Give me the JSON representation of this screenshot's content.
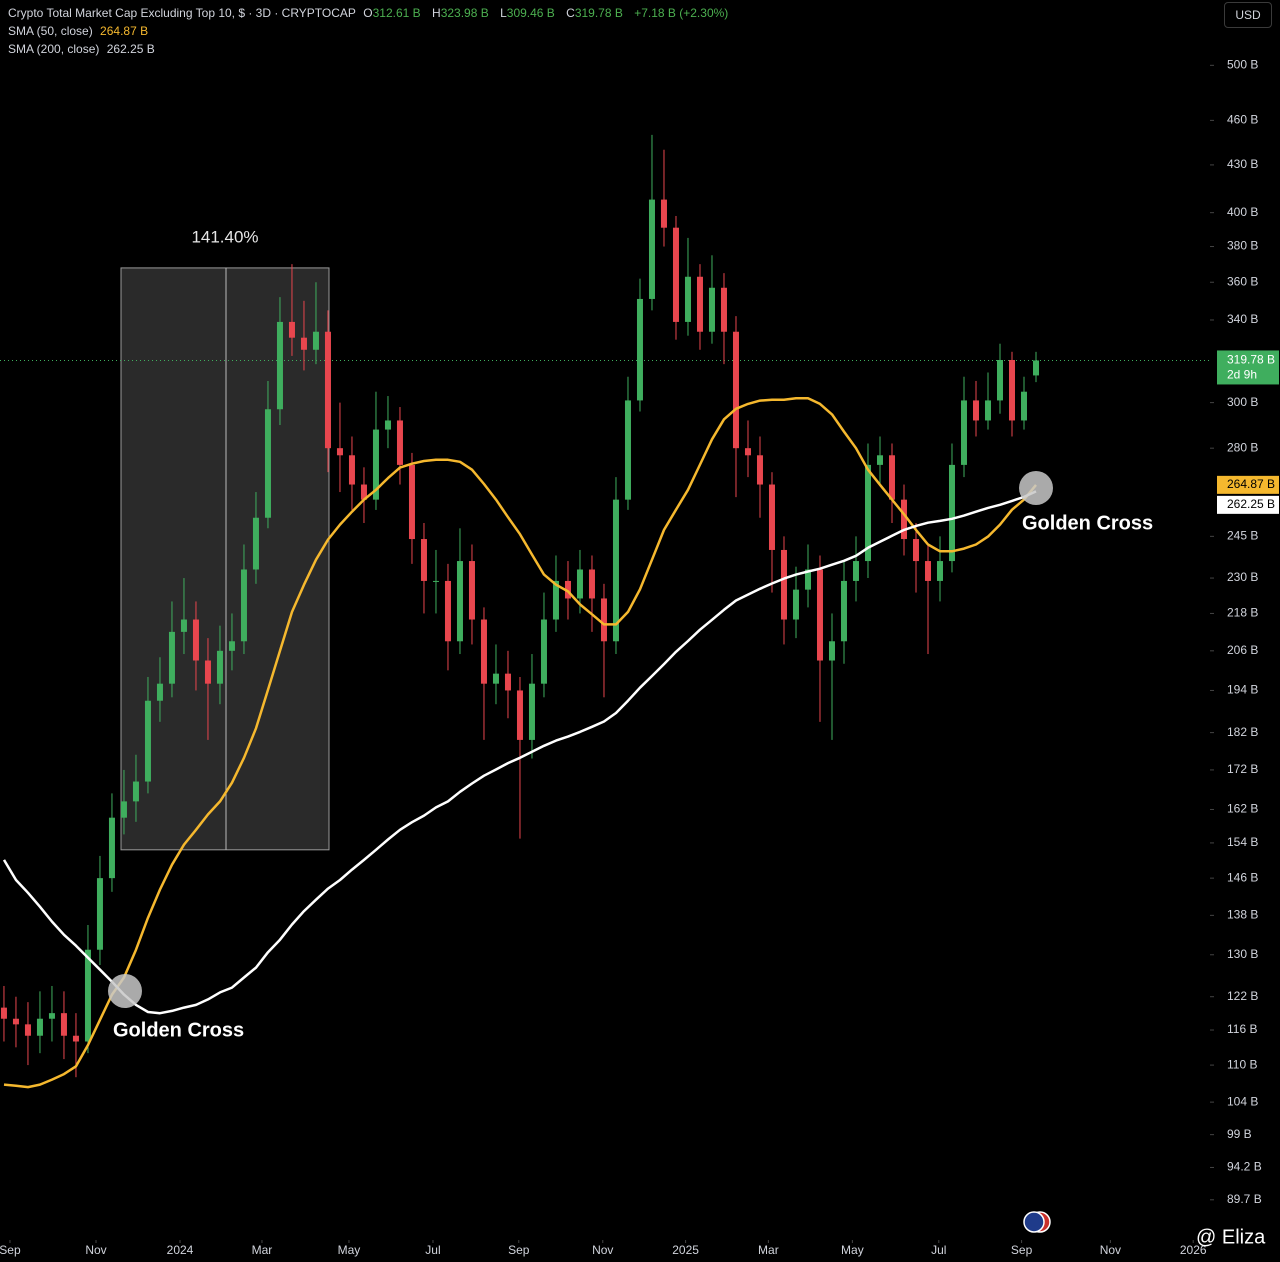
{
  "header": {
    "title": "Crypto Total Market Cap Excluding Top 10, $ · 3D · CRYPTOCAP",
    "ohlc_keys": [
      "O",
      "H",
      "L",
      "C"
    ],
    "ohlc_labels": [
      "312.61 B",
      "323.98 B",
      "309.46 B",
      "319.78 B"
    ],
    "change_label": "+7.18 B (+2.30%)",
    "currency": "USD"
  },
  "chart_data": {
    "type": "candlestick",
    "log_scale": true,
    "categories": [
      null,
      null,
      null,
      null,
      null,
      null,
      null,
      null,
      null,
      null,
      null,
      null,
      null,
      null,
      null,
      null,
      null,
      null,
      null,
      null,
      null,
      null,
      null,
      null,
      null,
      null,
      null,
      null,
      null,
      null,
      null,
      null,
      null,
      null,
      null,
      null,
      null,
      null,
      null,
      null,
      null,
      null,
      null,
      null,
      null,
      null,
      null,
      null,
      null,
      null,
      null,
      null,
      null,
      null,
      null,
      null,
      null,
      null,
      null,
      null,
      null,
      null,
      null,
      null,
      null,
      null,
      null,
      null,
      null,
      null,
      null,
      null,
      null,
      null,
      null,
      null,
      null,
      null,
      null,
      null,
      null,
      null,
      null,
      null,
      null,
      null,
      null
    ],
    "open": [
      120,
      118,
      117,
      115,
      118,
      119,
      115,
      114,
      131,
      146,
      160,
      164,
      169,
      191,
      196,
      212,
      216,
      203,
      196,
      206,
      209,
      233,
      252,
      297,
      339,
      331,
      325,
      334,
      280,
      277,
      265,
      259,
      288,
      292,
      273,
      244,
      229,
      229,
      209,
      236,
      216,
      196,
      199,
      194,
      180,
      196,
      216,
      229,
      223,
      233,
      223,
      209,
      259,
      301,
      351,
      408,
      391,
      339,
      363,
      334,
      357,
      334,
      280,
      277,
      265,
      240,
      216,
      226,
      233,
      203,
      209,
      229,
      236,
      273,
      277,
      259,
      244,
      236,
      229,
      236,
      273,
      301,
      292,
      301,
      320,
      292,
      312.61
    ],
    "high": [
      124,
      122,
      121,
      123,
      124,
      123,
      119,
      136,
      151,
      166,
      172,
      176,
      198,
      204,
      222,
      230,
      222,
      210,
      214,
      218,
      242,
      262,
      310,
      352,
      370,
      350,
      360,
      345,
      300,
      285,
      272,
      305,
      303,
      298,
      278,
      250,
      240,
      235,
      248,
      242,
      220,
      208,
      206,
      198,
      205,
      225,
      238,
      236,
      240,
      238,
      228,
      268,
      312,
      362,
      450,
      440,
      398,
      385,
      370,
      375,
      365,
      342,
      292,
      285,
      270,
      245,
      234,
      242,
      238,
      218,
      236,
      245,
      282,
      285,
      282,
      265,
      250,
      242,
      245,
      282,
      312,
      310,
      314,
      328,
      324,
      312,
      323.98
    ],
    "low": [
      114,
      113,
      110,
      112,
      114,
      111,
      108,
      112,
      128,
      143,
      156,
      159,
      166,
      185,
      192,
      205,
      194,
      180,
      190,
      200,
      205,
      228,
      248,
      290,
      322,
      315,
      318,
      270,
      262,
      255,
      250,
      255,
      280,
      265,
      235,
      218,
      218,
      200,
      205,
      208,
      180,
      190,
      186,
      155,
      175,
      192,
      212,
      216,
      218,
      212,
      192,
      205,
      255,
      296,
      345,
      380,
      330,
      332,
      325,
      328,
      318,
      260,
      268,
      252,
      225,
      208,
      210,
      220,
      185,
      180,
      202,
      222,
      230,
      265,
      250,
      238,
      225,
      205,
      222,
      232,
      268,
      285,
      288,
      295,
      285,
      288,
      309.46
    ],
    "close": [
      118,
      117,
      115,
      118,
      119,
      115,
      114,
      131,
      146,
      160,
      164,
      169,
      191,
      196,
      212,
      216,
      203,
      196,
      206,
      209,
      233,
      252,
      297,
      339,
      331,
      325,
      334,
      280,
      277,
      265,
      259,
      288,
      292,
      273,
      244,
      229,
      229,
      209,
      236,
      216,
      196,
      199,
      194,
      180,
      196,
      216,
      229,
      223,
      233,
      223,
      209,
      259,
      301,
      351,
      408,
      391,
      339,
      363,
      334,
      357,
      334,
      280,
      277,
      265,
      240,
      216,
      226,
      233,
      203,
      209,
      229,
      236,
      273,
      277,
      259,
      244,
      236,
      229,
      236,
      273,
      301,
      292,
      301,
      320,
      292,
      305,
      319.78
    ],
    "up_color": "#3fae5e",
    "down_color": "#e8464e",
    "last_price_label": "319.78 B",
    "countdown": "2d 9h",
    "price_label_color": "#3fae5e",
    "series": [
      {
        "name": "SMA (50, close)",
        "color": "#f5b82e",
        "last_label": "264.87 B",
        "values": [
          106.8,
          106.6,
          106.4,
          106.8,
          107.6,
          108.5,
          109.8,
          113.4,
          117.8,
          122.4,
          125.6,
          131,
          137.5,
          143.5,
          149.0,
          153.6,
          157.1,
          160.8,
          164,
          168.7,
          175.2,
          183.2,
          194.2,
          206,
          218.5,
          227.7,
          236.5,
          243.8,
          249.4,
          254.3,
          259,
          262.9,
          267.6,
          271.9,
          273.5,
          274.6,
          275.1,
          275.1,
          274.3,
          271.0,
          265.2,
          259,
          252.2,
          245.8,
          238.3,
          231.2,
          227.7,
          225.4,
          221.0,
          217.7,
          214.4,
          214.4,
          218.5,
          226.1,
          236.5,
          247.4,
          255.1,
          262.9,
          273.1,
          283.8,
          292.5,
          297.2,
          299.4,
          300.9,
          301.3,
          301.3,
          302,
          302,
          299.4,
          294.7,
          287.1,
          280,
          271,
          264.9,
          259,
          253.3,
          247.4,
          242.0,
          239.5,
          239.5,
          240.5,
          242.0,
          244.9,
          249.4,
          255.1,
          259,
          264.87
        ]
      },
      {
        "name": "SMA (200, close)",
        "color": "#ffffff",
        "last_label": "262.25 B",
        "values": [
          150.1,
          145.6,
          142.8,
          139.8,
          136.7,
          134.0,
          131.8,
          129.4,
          127.1,
          124.8,
          122.4,
          120.5,
          119.2,
          119.0,
          119.4,
          120.0,
          120.5,
          121.5,
          122.8,
          123.7,
          125.6,
          127.5,
          130.5,
          133.0,
          136.1,
          138.9,
          141.3,
          143.7,
          145.6,
          147.9,
          150.1,
          152.4,
          154.8,
          157.1,
          158.9,
          160.5,
          162.5,
          164,
          166.4,
          168.5,
          170.5,
          172.1,
          173.8,
          175.2,
          176.8,
          178.4,
          179.8,
          180.9,
          182.2,
          183.6,
          185.1,
          187.5,
          191,
          194.8,
          198.3,
          201.9,
          205.7,
          209.1,
          212.7,
          215.9,
          219.2,
          222.3,
          224.3,
          226.3,
          228.1,
          229.8,
          231.2,
          232.3,
          233.3,
          234.7,
          236.1,
          237.9,
          240.8,
          243.0,
          245.2,
          247.4,
          248.9,
          250.1,
          250.8,
          251.6,
          252.8,
          254.3,
          255.8,
          257.0,
          258.5,
          260.1,
          262.25
        ]
      }
    ],
    "ylim": [
      84.4,
      552
    ],
    "yticks": [
      {
        "value": 500,
        "label": "500 B"
      },
      {
        "value": 460,
        "label": "460 B"
      },
      {
        "value": 430,
        "label": "430 B"
      },
      {
        "value": 400,
        "label": "400 B"
      },
      {
        "value": 380,
        "label": "380 B"
      },
      {
        "value": 360,
        "label": "360 B"
      },
      {
        "value": 340,
        "label": "340 B"
      },
      {
        "value": 300,
        "label": "300 B"
      },
      {
        "value": 280,
        "label": "280 B"
      },
      {
        "value": 245,
        "label": "245 B"
      },
      {
        "value": 230,
        "label": "230 B"
      },
      {
        "value": 218,
        "label": "218 B"
      },
      {
        "value": 206,
        "label": "206 B"
      },
      {
        "value": 194,
        "label": "194 B"
      },
      {
        "value": 182,
        "label": "182 B"
      },
      {
        "value": 172,
        "label": "172 B"
      },
      {
        "value": 162,
        "label": "162 B"
      },
      {
        "value": 154,
        "label": "154 B"
      },
      {
        "value": 146,
        "label": "146 B"
      },
      {
        "value": 138,
        "label": "138 B"
      },
      {
        "value": 130,
        "label": "130 B"
      },
      {
        "value": 122,
        "label": "122 B"
      },
      {
        "value": 116,
        "label": "116 B"
      },
      {
        "value": 110,
        "label": "110 B"
      },
      {
        "value": 104,
        "label": "104 B"
      },
      {
        "value": 99,
        "label": "99 B"
      },
      {
        "value": 94.2,
        "label": "94.2 B"
      },
      {
        "value": 89.7,
        "label": "89.7 B"
      }
    ],
    "xlim": [
      -0.33,
      100.5
    ],
    "xticks": [
      {
        "value": 0.5,
        "label": "Sep"
      },
      {
        "value": 7.67,
        "label": "Nov"
      },
      {
        "value": 14.67,
        "label": "2024"
      },
      {
        "value": 21.5,
        "label": "Mar"
      },
      {
        "value": 28.75,
        "label": "May"
      },
      {
        "value": 35.75,
        "label": "Jul"
      },
      {
        "value": 42.9,
        "label": "Sep"
      },
      {
        "value": 49.9,
        "label": "Nov"
      },
      {
        "value": 56.8,
        "label": "2025"
      },
      {
        "value": 63.7,
        "label": "Mar"
      },
      {
        "value": 70.7,
        "label": "May"
      },
      {
        "value": 77.9,
        "label": "Jul"
      },
      {
        "value": 84.8,
        "label": "Sep"
      },
      {
        "value": 92.2,
        "label": "Nov"
      },
      {
        "value": 99.1,
        "label": "2026"
      }
    ],
    "measure": {
      "from": 152.4,
      "change": 141.4,
      "label": "141.40%"
    },
    "annotations": [
      "Golden Cross",
      "Golden Cross"
    ]
  },
  "watermark": "@ Eliza"
}
